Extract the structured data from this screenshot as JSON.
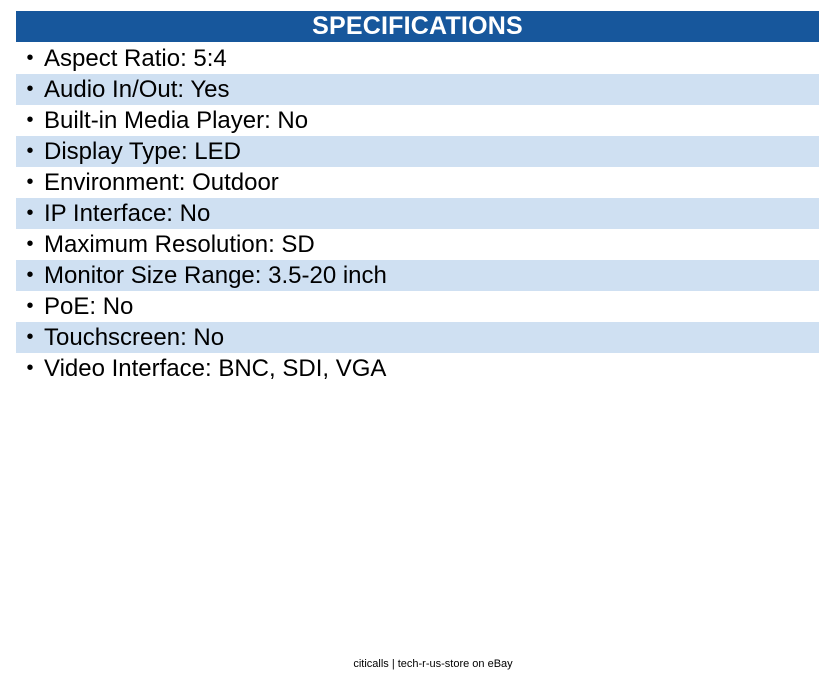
{
  "header": {
    "title": "SPECIFICATIONS"
  },
  "specs": [
    {
      "text": "Aspect Ratio: 5:4"
    },
    {
      "text": "Audio In/Out: Yes"
    },
    {
      "text": "Built-in Media Player: No"
    },
    {
      "text": "Display Type: LED"
    },
    {
      "text": "Environment: Outdoor"
    },
    {
      "text": "IP Interface: No"
    },
    {
      "text": "Maximum Resolution: SD"
    },
    {
      "text": "Monitor Size Range: 3.5-20 inch"
    },
    {
      "text": "PoE: No"
    },
    {
      "text": "Touchscreen: No"
    },
    {
      "text": "Video Interface: BNC, SDI, VGA"
    }
  ],
  "bullet_glyph": "•",
  "footer": {
    "text": "citicalls | tech-r-us-store on eBay"
  },
  "colors": {
    "header_bg": "#17579c",
    "header_text": "#ffffff",
    "row_shade": "#cfe0f2"
  }
}
